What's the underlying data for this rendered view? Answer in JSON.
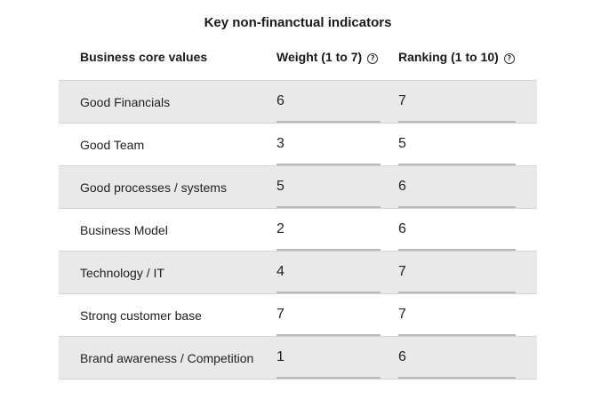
{
  "title": "Key non-financtual indicators",
  "columns": {
    "label": "Business core values",
    "weight": "Weight (1 to 7)",
    "ranking": "Ranking (1 to 10)",
    "help_icon": "question-circle-icon"
  },
  "rows": [
    {
      "label": "Good Financials",
      "weight": "6",
      "ranking": "7"
    },
    {
      "label": "Good Team",
      "weight": "3",
      "ranking": "5"
    },
    {
      "label": "Good processes / systems",
      "weight": "5",
      "ranking": "6"
    },
    {
      "label": "Business Model",
      "weight": "2",
      "ranking": "6"
    },
    {
      "label": "Technology / IT",
      "weight": "4",
      "ranking": "7"
    },
    {
      "label": "Strong customer base",
      "weight": "7",
      "ranking": "7"
    },
    {
      "label": "Brand awareness / Competition",
      "weight": "1",
      "ranking": "6"
    }
  ],
  "colors": {
    "shaded_row": "#e9e9e9",
    "field_underline": "#b9b9b9"
  }
}
